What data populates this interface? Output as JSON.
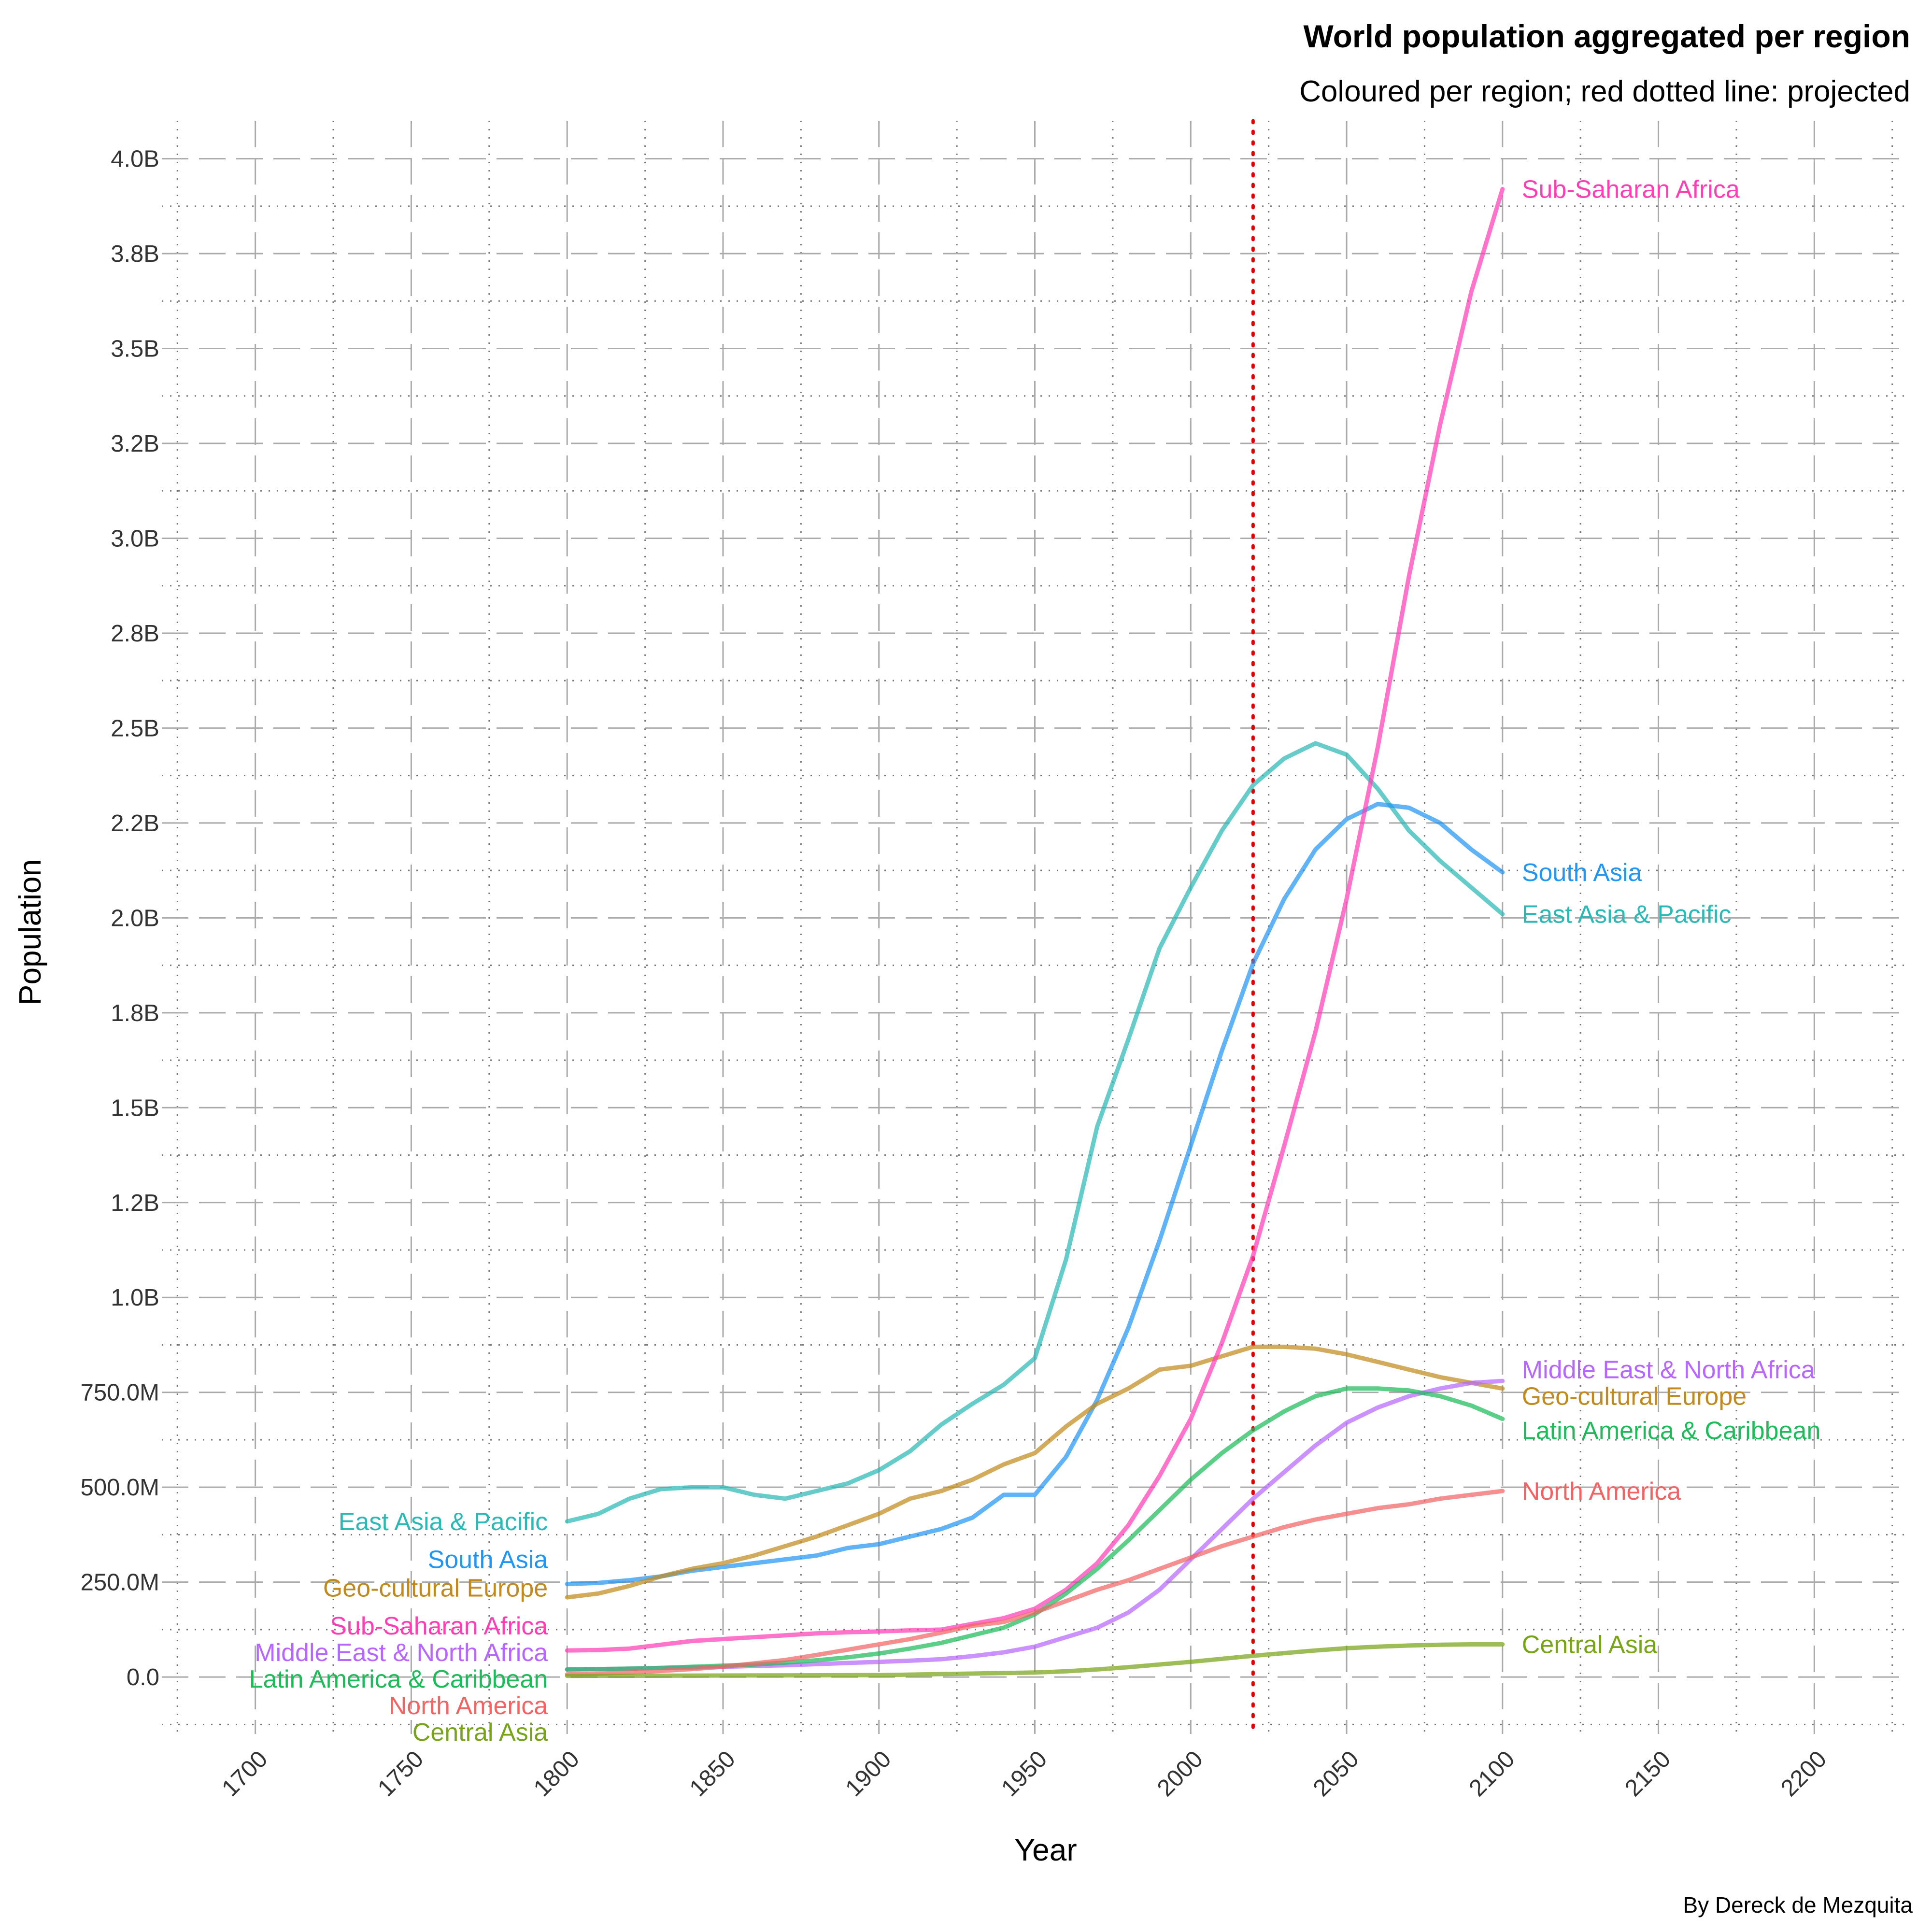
{
  "chart_data": {
    "type": "line",
    "title": "World population aggregated per region",
    "subtitle": "Coloured per region; red dotted line: projected",
    "caption": "By Dereck de Mezquita",
    "xlabel": "Year",
    "ylabel": "Population",
    "xlim": [
      1670,
      2230
    ],
    "ylim": [
      -150000000,
      4100000000
    ],
    "x_ticks": [
      1700,
      1750,
      1800,
      1850,
      1900,
      1950,
      2000,
      2050,
      2100,
      2150,
      2200
    ],
    "y_ticks": [
      {
        "value": 0,
        "label": "0.0"
      },
      {
        "value": 250000000,
        "label": "250.0M"
      },
      {
        "value": 500000000,
        "label": "500.0M"
      },
      {
        "value": 750000000,
        "label": "750.0M"
      },
      {
        "value": 1000000000,
        "label": "1.0B"
      },
      {
        "value": 1250000000,
        "label": "1.2B"
      },
      {
        "value": 1500000000,
        "label": "1.5B"
      },
      {
        "value": 1750000000,
        "label": "1.8B"
      },
      {
        "value": 2000000000,
        "label": "2.0B"
      },
      {
        "value": 2250000000,
        "label": "2.2B"
      },
      {
        "value": 2500000000,
        "label": "2.5B"
      },
      {
        "value": 2750000000,
        "label": "2.8B"
      },
      {
        "value": 3000000000,
        "label": "3.0B"
      },
      {
        "value": 3250000000,
        "label": "3.2B"
      },
      {
        "value": 3500000000,
        "label": "3.5B"
      },
      {
        "value": 3750000000,
        "label": "3.8B"
      },
      {
        "value": 4000000000,
        "label": "4.0B"
      }
    ],
    "projection_year": 2020,
    "projection_color": "#e00000",
    "grid": "on",
    "legend": "none (direct labels at line ends)",
    "series": [
      {
        "name": "East Asia & Pacific",
        "color": "#2bb9b5",
        "x": [
          1800,
          1810,
          1820,
          1830,
          1840,
          1850,
          1860,
          1870,
          1880,
          1890,
          1900,
          1910,
          1920,
          1930,
          1940,
          1950,
          1960,
          1970,
          1980,
          1990,
          2000,
          2010,
          2020,
          2030,
          2040,
          2050,
          2060,
          2070,
          2080,
          2090,
          2100
        ],
        "y": [
          410000000,
          430000000,
          470000000,
          495000000,
          500000000,
          500000000,
          480000000,
          470000000,
          490000000,
          510000000,
          545000000,
          595000000,
          665000000,
          720000000,
          770000000,
          840000000,
          1100000000,
          1450000000,
          1680000000,
          1920000000,
          2080000000,
          2230000000,
          2350000000,
          2420000000,
          2460000000,
          2430000000,
          2340000000,
          2230000000,
          2150000000,
          2080000000,
          2010000000
        ]
      },
      {
        "name": "South Asia",
        "color": "#2196f3",
        "x": [
          1800,
          1810,
          1820,
          1830,
          1840,
          1850,
          1860,
          1870,
          1880,
          1890,
          1900,
          1910,
          1920,
          1930,
          1940,
          1950,
          1960,
          1970,
          1980,
          1990,
          2000,
          2010,
          2020,
          2030,
          2040,
          2050,
          2060,
          2070,
          2080,
          2090,
          2100
        ],
        "y": [
          245000000,
          248000000,
          255000000,
          265000000,
          280000000,
          290000000,
          300000000,
          310000000,
          320000000,
          340000000,
          350000000,
          370000000,
          390000000,
          420000000,
          480000000,
          480000000,
          580000000,
          730000000,
          920000000,
          1150000000,
          1400000000,
          1650000000,
          1880000000,
          2050000000,
          2180000000,
          2260000000,
          2300000000,
          2290000000,
          2250000000,
          2180000000,
          2120000000
        ]
      },
      {
        "name": "Geo-cultural Europe",
        "color": "#c08a1e",
        "x": [
          1800,
          1810,
          1820,
          1830,
          1840,
          1850,
          1860,
          1870,
          1880,
          1890,
          1900,
          1910,
          1920,
          1930,
          1940,
          1950,
          1960,
          1970,
          1980,
          1990,
          2000,
          2010,
          2020,
          2030,
          2040,
          2050,
          2060,
          2070,
          2080,
          2090,
          2100
        ],
        "y": [
          210000000,
          220000000,
          240000000,
          265000000,
          285000000,
          300000000,
          320000000,
          345000000,
          370000000,
          400000000,
          430000000,
          470000000,
          490000000,
          520000000,
          560000000,
          590000000,
          660000000,
          720000000,
          760000000,
          810000000,
          820000000,
          845000000,
          870000000,
          870000000,
          865000000,
          850000000,
          830000000,
          810000000,
          790000000,
          775000000,
          760000000
        ]
      },
      {
        "name": "Sub-Saharan Africa",
        "color": "#ff3eb5",
        "x": [
          1800,
          1810,
          1820,
          1830,
          1840,
          1850,
          1860,
          1870,
          1880,
          1890,
          1900,
          1910,
          1920,
          1930,
          1940,
          1950,
          1960,
          1970,
          1980,
          1990,
          2000,
          2010,
          2020,
          2030,
          2040,
          2050,
          2060,
          2070,
          2080,
          2090,
          2100
        ],
        "y": [
          70000000,
          71000000,
          75000000,
          85000000,
          95000000,
          100000000,
          105000000,
          110000000,
          115000000,
          118000000,
          120000000,
          123000000,
          125000000,
          140000000,
          155000000,
          180000000,
          230000000,
          300000000,
          400000000,
          530000000,
          680000000,
          880000000,
          1110000000,
          1400000000,
          1700000000,
          2050000000,
          2450000000,
          2900000000,
          3300000000,
          3650000000,
          3920000000
        ]
      },
      {
        "name": "Middle East & North Africa",
        "color": "#b766ff",
        "x": [
          1800,
          1810,
          1820,
          1830,
          1840,
          1850,
          1860,
          1870,
          1880,
          1890,
          1900,
          1910,
          1920,
          1930,
          1940,
          1950,
          1960,
          1970,
          1980,
          1990,
          2000,
          2010,
          2020,
          2030,
          2040,
          2050,
          2060,
          2070,
          2080,
          2090,
          2100
        ],
        "y": [
          20000000,
          21000000,
          22000000,
          24000000,
          25000000,
          27000000,
          29000000,
          31000000,
          34000000,
          37000000,
          40000000,
          43000000,
          47000000,
          55000000,
          65000000,
          80000000,
          105000000,
          130000000,
          170000000,
          230000000,
          310000000,
          390000000,
          470000000,
          540000000,
          610000000,
          670000000,
          710000000,
          740000000,
          760000000,
          775000000,
          780000000
        ]
      },
      {
        "name": "Latin America & Caribbean",
        "color": "#1dbb5a",
        "x": [
          1800,
          1810,
          1820,
          1830,
          1840,
          1850,
          1860,
          1870,
          1880,
          1890,
          1900,
          1910,
          1920,
          1930,
          1940,
          1950,
          1960,
          1970,
          1980,
          1990,
          2000,
          2010,
          2020,
          2030,
          2040,
          2050,
          2060,
          2070,
          2080,
          2090,
          2100
        ],
        "y": [
          20000000,
          21000000,
          22000000,
          24000000,
          27000000,
          30000000,
          33000000,
          38000000,
          44000000,
          52000000,
          62000000,
          75000000,
          90000000,
          110000000,
          130000000,
          165000000,
          220000000,
          285000000,
          360000000,
          440000000,
          520000000,
          590000000,
          650000000,
          700000000,
          740000000,
          760000000,
          760000000,
          755000000,
          740000000,
          715000000,
          680000000
        ]
      },
      {
        "name": "North America",
        "color": "#f26464",
        "x": [
          1800,
          1810,
          1820,
          1830,
          1840,
          1850,
          1860,
          1870,
          1880,
          1890,
          1900,
          1910,
          1920,
          1930,
          1940,
          1950,
          1960,
          1970,
          1980,
          1990,
          2000,
          2010,
          2020,
          2030,
          2040,
          2050,
          2060,
          2070,
          2080,
          2090,
          2100
        ],
        "y": [
          7000000,
          9000000,
          12000000,
          16000000,
          21000000,
          27000000,
          36000000,
          45000000,
          58000000,
          72000000,
          86000000,
          100000000,
          117000000,
          135000000,
          145000000,
          170000000,
          200000000,
          230000000,
          255000000,
          285000000,
          315000000,
          345000000,
          370000000,
          395000000,
          415000000,
          430000000,
          445000000,
          455000000,
          470000000,
          480000000,
          490000000
        ]
      },
      {
        "name": "Central Asia",
        "color": "#78a418",
        "x": [
          1800,
          1850,
          1900,
          1950,
          1960,
          1970,
          1980,
          1990,
          2000,
          2010,
          2020,
          2030,
          2040,
          2050,
          2060,
          2070,
          2080,
          2090,
          2100
        ],
        "y": [
          3000000,
          4000000,
          5000000,
          12000000,
          15000000,
          20000000,
          26000000,
          33000000,
          40000000,
          48000000,
          56000000,
          63000000,
          70000000,
          76000000,
          80000000,
          83000000,
          85000000,
          86000000,
          86000000
        ]
      }
    ],
    "start_labels": [
      {
        "text": "East Asia & Pacific",
        "color": "#2bb9b5",
        "y": 410000000
      },
      {
        "text": "South Asia",
        "color": "#2196f3",
        "y": 310000000
      },
      {
        "text": "Geo-cultural Europe",
        "color": "#c08a1e",
        "y": 235000000
      },
      {
        "text": "Sub-Saharan Africa",
        "color": "#ff3eb5",
        "y": 135000000
      },
      {
        "text": "Middle East & North Africa",
        "color": "#b766ff",
        "y": 65000000
      },
      {
        "text": "Latin America & Caribbean",
        "color": "#1dbb5a",
        "y": -5000000
      },
      {
        "text": "North America",
        "color": "#f26464",
        "y": -75000000
      },
      {
        "text": "Central Asia",
        "color": "#78a418",
        "y": -145000000
      }
    ],
    "end_labels": [
      {
        "text": "Sub-Saharan Africa",
        "color": "#ff3eb5",
        "y": 3920000000
      },
      {
        "text": "South Asia",
        "color": "#2196f3",
        "y": 2120000000
      },
      {
        "text": "East Asia & Pacific",
        "color": "#2bb9b5",
        "y": 2010000000
      },
      {
        "text": "Middle East & North Africa",
        "color": "#b766ff",
        "y": 810000000
      },
      {
        "text": "Geo-cultural Europe",
        "color": "#c08a1e",
        "y": 740000000
      },
      {
        "text": "Latin America & Caribbean",
        "color": "#1dbb5a",
        "y": 650000000
      },
      {
        "text": "North America",
        "color": "#f26464",
        "y": 490000000
      },
      {
        "text": "Central Asia",
        "color": "#78a418",
        "y": 86000000
      }
    ]
  }
}
